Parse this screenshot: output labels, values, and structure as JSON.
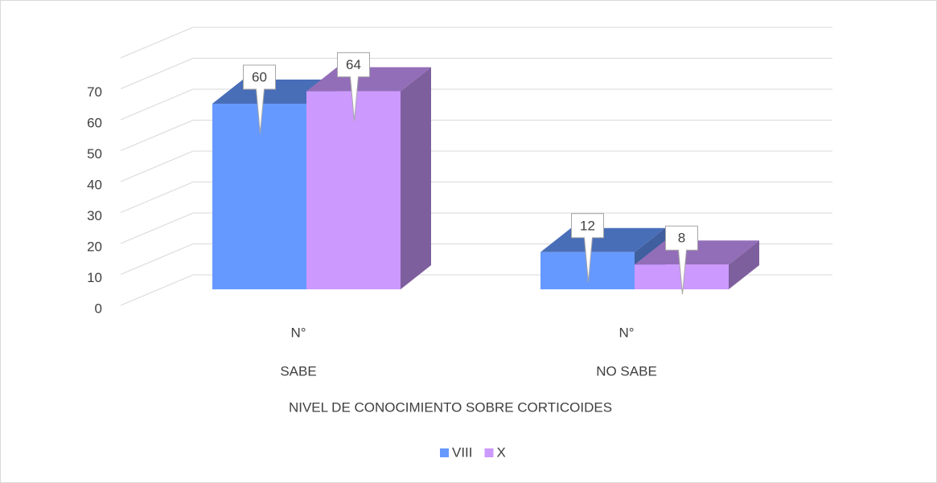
{
  "chart_data": {
    "type": "bar3d",
    "x_label": "NIVEL DE CONOCIMIENTO SOBRE CORTICOIDES",
    "categories": [
      [
        "N°",
        "SABE"
      ],
      [
        "N°",
        "NO SABE"
      ]
    ],
    "series": [
      {
        "name": "VIII",
        "color": "#6699ff",
        "values": [
          60,
          12
        ]
      },
      {
        "name": "X",
        "color": "#cc99ff",
        "values": [
          64,
          8
        ]
      }
    ],
    "ylim": [
      0,
      80
    ],
    "yticks": [
      0,
      10,
      20,
      30,
      40,
      50,
      60,
      70
    ],
    "grid": true,
    "legend": "bottom"
  }
}
